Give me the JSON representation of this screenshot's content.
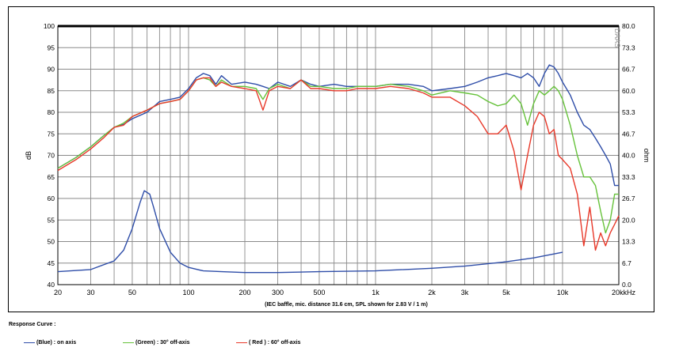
{
  "chart_data": {
    "type": "line",
    "title": "",
    "xlabel": "(IEC baffle, mic. distance 31.6 cm, SPL shown for 2.83 V / 1 m)",
    "ylabel": "dB",
    "ylabel_right": "ohm",
    "x_unit": "kHz",
    "x_scale": "log",
    "xlim": [
      20,
      20000
    ],
    "ylim": [
      40,
      100
    ],
    "ylim_right": [
      0,
      80
    ],
    "grid": true,
    "corner_label": "DAAS",
    "x_ticks": [
      {
        "value": 20,
        "label": "20"
      },
      {
        "value": 30,
        "label": "30"
      },
      {
        "value": 50,
        "label": "50"
      },
      {
        "value": 100,
        "label": "100"
      },
      {
        "value": 200,
        "label": "200"
      },
      {
        "value": 300,
        "label": "300"
      },
      {
        "value": 500,
        "label": "500"
      },
      {
        "value": 1000,
        "label": "1k"
      },
      {
        "value": 2000,
        "label": "2k"
      },
      {
        "value": 3000,
        "label": "3k"
      },
      {
        "value": 5000,
        "label": "5k"
      },
      {
        "value": 10000,
        "label": "10k"
      },
      {
        "value": 20000,
        "label": "20k"
      }
    ],
    "y_ticks": [
      "40",
      "45",
      "50",
      "55",
      "60",
      "65",
      "70",
      "75",
      "80",
      "85",
      "90",
      "95",
      "100"
    ],
    "y_ticks_right": [
      "0.0",
      "6.7",
      "13.3",
      "20.0",
      "26.7",
      "33.3",
      "40.0",
      "46.7",
      "53.3",
      "60.0",
      "66.7",
      "73.3",
      "80.0"
    ],
    "legend": {
      "title": "Response Curve :",
      "placement": "bottom-left",
      "items": [
        {
          "label": "(Blue) : on axis",
          "color": "#2e4da8"
        },
        {
          "label": "(Green) : 30° off-axis",
          "color": "#66c23a"
        },
        {
          "label": "( Red ) : 60° off-axis",
          "color": "#e8392a"
        }
      ]
    },
    "series": [
      {
        "color": "#2e4da8",
        "axis": "left",
        "x": [
          20,
          25,
          30,
          35,
          40,
          45,
          50,
          60,
          70,
          80,
          90,
          100,
          110,
          120,
          130,
          140,
          150,
          170,
          200,
          230,
          250,
          270,
          300,
          350,
          400,
          450,
          500,
          600,
          700,
          800,
          1000,
          1200,
          1500,
          1800,
          2000,
          2500,
          3000,
          3500,
          4000,
          4500,
          5000,
          5500,
          6000,
          6500,
          7000,
          7500,
          8000,
          8500,
          9000,
          9500,
          10000,
          11000,
          12000,
          13000,
          14000,
          15000,
          16000,
          17000,
          18000,
          19000,
          20000
        ],
        "y": [
          67,
          69.5,
          72,
          74.5,
          76.5,
          77.2,
          78.5,
          80,
          82.5,
          83,
          83.5,
          85.5,
          88,
          89,
          88.5,
          86.5,
          88.5,
          86.5,
          87,
          86.5,
          86,
          85.5,
          87,
          86,
          87.5,
          86.5,
          86,
          86.5,
          86,
          86,
          86,
          86.5,
          86.5,
          86,
          85,
          85.5,
          86,
          87,
          88,
          88.5,
          89,
          88.5,
          88,
          89,
          88,
          86,
          89,
          91,
          90.5,
          89,
          87,
          84,
          80,
          77,
          76,
          74,
          72,
          70,
          68,
          63,
          63
        ]
      },
      {
        "color": "#66c23a",
        "axis": "left",
        "x": [
          20,
          25,
          30,
          35,
          40,
          45,
          50,
          60,
          70,
          80,
          90,
          100,
          110,
          120,
          130,
          140,
          150,
          170,
          200,
          230,
          250,
          270,
          300,
          350,
          400,
          450,
          500,
          600,
          700,
          800,
          1000,
          1200,
          1500,
          1800,
          2000,
          2500,
          3000,
          3500,
          4000,
          4500,
          5000,
          5500,
          6000,
          6500,
          7000,
          7500,
          8000,
          8500,
          9000,
          9500,
          10000,
          11000,
          12000,
          13000,
          14000,
          15000,
          16000,
          17000,
          18000,
          19000,
          20000
        ],
        "y": [
          67,
          69.5,
          72,
          74.5,
          76.5,
          77.5,
          79,
          80.5,
          82,
          82.5,
          83,
          85,
          87.5,
          88,
          87.5,
          86,
          87.5,
          86,
          86,
          85.5,
          83,
          85.5,
          86.5,
          85.5,
          87.5,
          86,
          86,
          85.5,
          85.5,
          86,
          86,
          86.5,
          86,
          85,
          84,
          85,
          84.5,
          84,
          82.5,
          81.5,
          82,
          84,
          82,
          77,
          82,
          85,
          84,
          85,
          86,
          85,
          83,
          77,
          70,
          65,
          65,
          63,
          57,
          52,
          55,
          61,
          61
        ]
      },
      {
        "color": "#e8392a",
        "axis": "left",
        "x": [
          20,
          25,
          30,
          35,
          40,
          45,
          50,
          60,
          70,
          80,
          90,
          100,
          110,
          120,
          130,
          140,
          150,
          170,
          200,
          230,
          250,
          270,
          300,
          350,
          400,
          450,
          500,
          600,
          700,
          800,
          1000,
          1200,
          1500,
          1800,
          2000,
          2500,
          3000,
          3500,
          4000,
          4500,
          5000,
          5500,
          6000,
          6500,
          7000,
          7500,
          8000,
          8500,
          9000,
          9500,
          10000,
          11000,
          12000,
          13000,
          14000,
          15000,
          16000,
          17000,
          18000,
          19000,
          20000
        ],
        "y": [
          66.5,
          69,
          71.5,
          74,
          76.5,
          77,
          79,
          80.5,
          82,
          82.5,
          83,
          85,
          87.5,
          88,
          88,
          86,
          87,
          86,
          85.5,
          85,
          80.5,
          85,
          86,
          85.5,
          87.5,
          85.5,
          85.5,
          85,
          85,
          85.5,
          85.5,
          86,
          85.5,
          84.5,
          83.5,
          83.5,
          81.5,
          79,
          75,
          75,
          77,
          71,
          62,
          70,
          77,
          80,
          79,
          75,
          76,
          70,
          69,
          67,
          61,
          49,
          58,
          48,
          52,
          49,
          52,
          54,
          56
        ]
      },
      {
        "color": "#2e4da8",
        "axis": "left",
        "x": [
          20,
          30,
          40,
          45,
          50,
          55,
          58,
          62,
          65,
          70,
          80,
          90,
          100,
          120,
          150,
          200,
          300,
          500,
          1000,
          2000,
          3000,
          5000,
          7000,
          10000
        ],
        "y": [
          43,
          43.5,
          45.5,
          48,
          53,
          59,
          61.8,
          61,
          58,
          53,
          47.5,
          45,
          44,
          43.2,
          43,
          42.8,
          42.8,
          43,
          43.2,
          43.8,
          44.3,
          45.3,
          46.2,
          47.5
        ]
      }
    ]
  }
}
